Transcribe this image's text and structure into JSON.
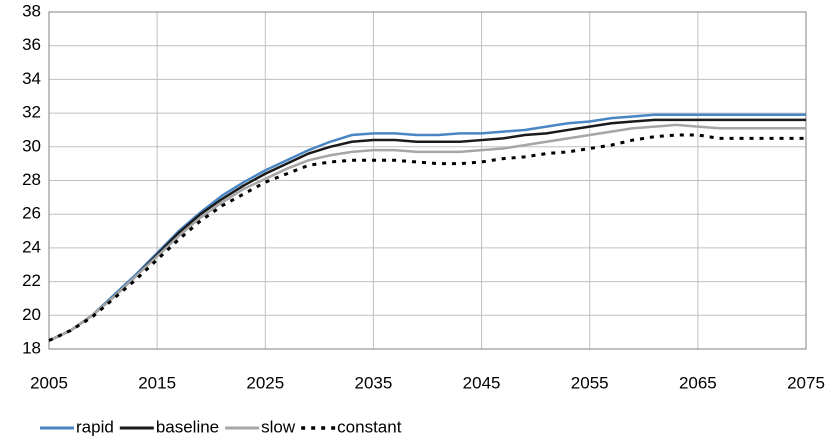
{
  "chart_data": {
    "type": "line",
    "x": [
      2005,
      2007,
      2009,
      2011,
      2013,
      2015,
      2017,
      2019,
      2021,
      2023,
      2025,
      2027,
      2029,
      2031,
      2033,
      2035,
      2037,
      2039,
      2041,
      2043,
      2045,
      2047,
      2049,
      2051,
      2053,
      2055,
      2057,
      2059,
      2061,
      2063,
      2065,
      2067,
      2069,
      2071,
      2073,
      2075
    ],
    "series": [
      {
        "name": "rapid",
        "color": "#4a86c4",
        "dashed": false,
        "values": [
          18.5,
          19.1,
          20.0,
          21.2,
          22.4,
          23.7,
          25.0,
          26.1,
          27.1,
          27.9,
          28.6,
          29.2,
          29.8,
          30.3,
          30.7,
          30.8,
          30.8,
          30.7,
          30.7,
          30.8,
          30.8,
          30.9,
          31.0,
          31.2,
          31.4,
          31.5,
          31.7,
          31.8,
          31.9,
          31.9,
          31.9,
          31.9,
          31.9,
          31.9,
          31.9,
          31.9
        ]
      },
      {
        "name": "baseline",
        "color": "#1a1a1a",
        "dashed": false,
        "values": [
          18.5,
          19.1,
          20.0,
          21.1,
          22.3,
          23.6,
          24.9,
          26.0,
          26.9,
          27.7,
          28.4,
          29.0,
          29.6,
          30.0,
          30.3,
          30.4,
          30.4,
          30.3,
          30.3,
          30.3,
          30.4,
          30.5,
          30.7,
          30.8,
          31.0,
          31.2,
          31.4,
          31.5,
          31.6,
          31.6,
          31.6,
          31.6,
          31.6,
          31.6,
          31.6,
          31.6
        ]
      },
      {
        "name": "slow",
        "color": "#a6a6a6",
        "dashed": false,
        "values": [
          18.5,
          19.1,
          20.0,
          21.1,
          22.3,
          23.5,
          24.7,
          25.8,
          26.7,
          27.5,
          28.1,
          28.7,
          29.2,
          29.5,
          29.7,
          29.8,
          29.8,
          29.7,
          29.7,
          29.7,
          29.8,
          29.9,
          30.1,
          30.3,
          30.5,
          30.7,
          30.9,
          31.1,
          31.2,
          31.3,
          31.2,
          31.1,
          31.1,
          31.1,
          31.1,
          31.1
        ]
      },
      {
        "name": "constant",
        "color": "#000000",
        "dashed": true,
        "values": [
          18.5,
          19.1,
          19.9,
          21.0,
          22.1,
          23.3,
          24.5,
          25.6,
          26.5,
          27.2,
          27.9,
          28.4,
          28.9,
          29.1,
          29.2,
          29.2,
          29.2,
          29.1,
          29.0,
          29.0,
          29.1,
          29.3,
          29.4,
          29.6,
          29.7,
          29.9,
          30.1,
          30.4,
          30.6,
          30.7,
          30.7,
          30.5,
          30.5,
          30.5,
          30.5,
          30.5
        ]
      }
    ],
    "xlim": [
      2005,
      2075
    ],
    "xticks": [
      2005,
      2015,
      2025,
      2035,
      2045,
      2055,
      2065,
      2075
    ],
    "ylim": [
      18,
      38
    ],
    "yticks": [
      18,
      20,
      22,
      24,
      26,
      28,
      30,
      32,
      34,
      36,
      38
    ],
    "grid": true,
    "legend": "bottom-left"
  }
}
